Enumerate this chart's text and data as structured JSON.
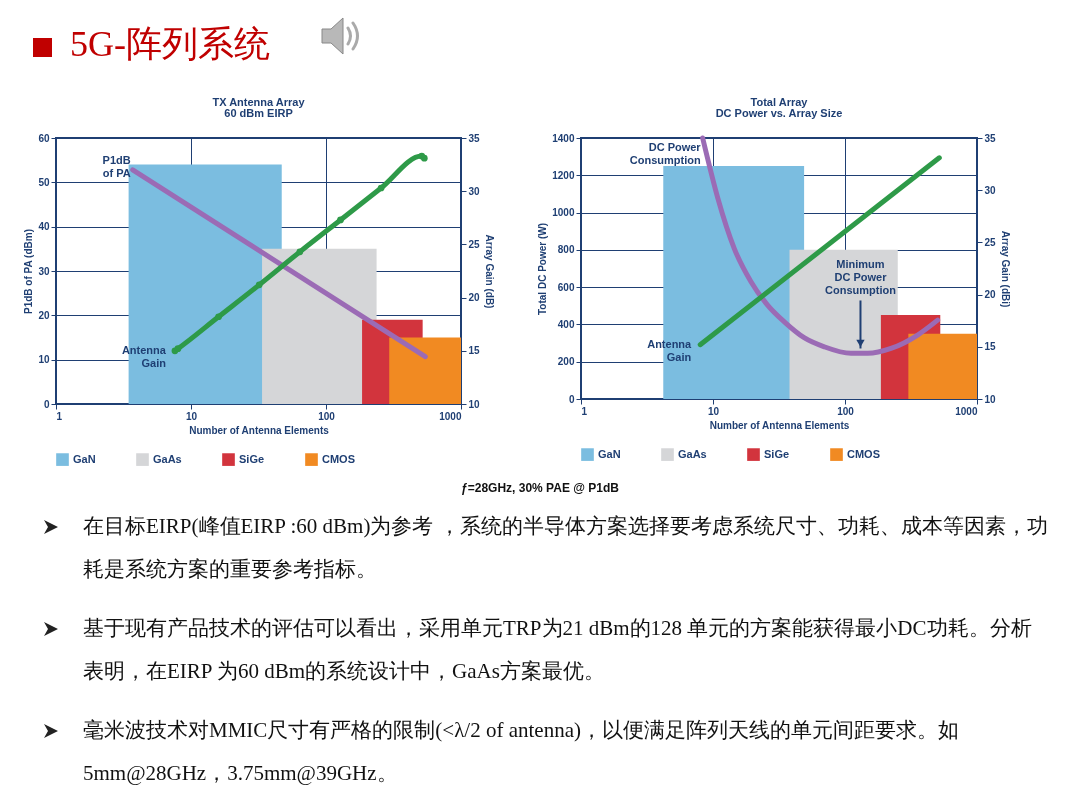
{
  "chart_data": [
    {
      "type": "line",
      "title": "TX Antenna Array",
      "subtitle": "60 dBm EIRP",
      "xlabel": "Number of Antenna Elements",
      "ylabel": "P1dB of PA (dBm)",
      "y2label": "Array Gain (dB)",
      "log": "x",
      "xlim": [
        1,
        1000
      ],
      "xticks": [
        1,
        10,
        100,
        1000
      ],
      "ylim": [
        0,
        60
      ],
      "yticks": [
        0,
        10,
        20,
        30,
        40,
        50,
        60
      ],
      "y2lim": [
        10,
        35
      ],
      "y2ticks": [
        10,
        15,
        20,
        25,
        30,
        35
      ],
      "grid": "y_and_x",
      "legend": "bottom",
      "series": [
        {
          "type": "area",
          "name": "GaN",
          "color": "#7bbde0",
          "x": [
            3.45,
            47
          ],
          "values": [
            54,
            54
          ]
        },
        {
          "type": "area",
          "name": "GaAs",
          "color": "#d5d6d8",
          "x": [
            33.6,
            237
          ],
          "values": [
            35,
            35
          ]
        },
        {
          "type": "area",
          "name": "SiGe",
          "color": "#d2343d",
          "x": [
            185,
            520
          ],
          "values": [
            19,
            19
          ]
        },
        {
          "type": "area",
          "name": "CMOS",
          "color": "#f18a22",
          "x": [
            294,
            1000
          ],
          "values": [
            15,
            15
          ]
        },
        {
          "type": "line",
          "name": "P1dB\nof PA",
          "color": "#9b6bb5",
          "x": [
            3.7,
            544
          ],
          "values": [
            52.8,
            10.7
          ]
        },
        {
          "type": "line",
          "name": "Antenna\nGain",
          "color": "#2e9a48",
          "axis": "y2",
          "marker": "circle",
          "x": [
            7.6,
            8,
            16,
            32,
            64,
            128,
            256,
            512,
            535
          ],
          "values": [
            15,
            15.2,
            18.2,
            21.2,
            24.3,
            27.3,
            30.3,
            33.3,
            33.1
          ]
        }
      ]
    },
    {
      "type": "line",
      "title": "Total Array",
      "subtitle": "DC Power vs. Array Size",
      "xlabel": "Number of Antenna Elements",
      "ylabel": "Total DC Power (W)",
      "y2label": "Array Gain (dBi)",
      "log": "x",
      "xlim": [
        1,
        1000
      ],
      "xticks": [
        1,
        10,
        100,
        1000
      ],
      "ylim": [
        0,
        1400
      ],
      "yticks": [
        0,
        200,
        400,
        600,
        800,
        1000,
        1200,
        1400
      ],
      "y2lim": [
        10,
        35
      ],
      "y2ticks": [
        10,
        15,
        20,
        25,
        30,
        35
      ],
      "grid": "y_and_x",
      "legend": "bottom",
      "annotations": [
        {
          "text": "Minimum\nDC Power\nConsumption",
          "x": 131,
          "y": 271
        }
      ],
      "series": [
        {
          "type": "area",
          "name": "GaN",
          "color": "#7bbde0",
          "x": [
            4.2,
            49
          ],
          "values": [
            1250,
            1250
          ]
        },
        {
          "type": "area",
          "name": "GaAs",
          "color": "#d5d6d8",
          "x": [
            38,
            251
          ],
          "values": [
            800,
            800
          ]
        },
        {
          "type": "area",
          "name": "SiGe",
          "color": "#d2343d",
          "x": [
            187,
            527
          ],
          "values": [
            450,
            450
          ]
        },
        {
          "type": "area",
          "name": "CMOS",
          "color": "#f18a22",
          "x": [
            302,
            1000
          ],
          "values": [
            350,
            350
          ]
        },
        {
          "type": "line",
          "name": "DC Power\nConsumption",
          "color": "#9b6bb5",
          "x": [
            8.35,
            10.9,
            14.5,
            19.4,
            25.9,
            34.7,
            49,
            69.7,
            111,
            149,
            223,
            355,
            503
          ],
          "values": [
            1400,
            1075,
            807,
            629,
            504,
            414,
            329,
            280,
            245,
            245,
            271,
            343,
            423
          ]
        },
        {
          "type": "line",
          "name": "Antenna\nGain",
          "color": "#2e9a48",
          "axis": "y2",
          "x": [
            8,
            518
          ],
          "values": [
            15.2,
            33.1
          ]
        }
      ]
    },
    {
      "type": "other",
      "title": "5G-阵列系统",
      "annotations": [
        "ƒ=28GHz, 30% PAE @ P1dB",
        "在目标EIRP(峰值EIRP :60 dBm)为参考 ，系统的半导体方案选择要考虑系统尺寸、功耗、成本等因素，功耗是系统方案的重要参考指标。",
        "基于现有产品技术的评估可以看出，采用单元TRP为21 dBm的128 单元的方案能获得最小DC功耗。分析表明，在EIRP 为60 dBm的系统设计中，GaAs方案最优。",
        "毫米波技术对MMIC尺寸有严格的限制(<λ/2 of antenna)，以便满足阵列天线的单元间距要求。如5mm@28GHz，3.75mm@39GHz。"
      ]
    }
  ]
}
